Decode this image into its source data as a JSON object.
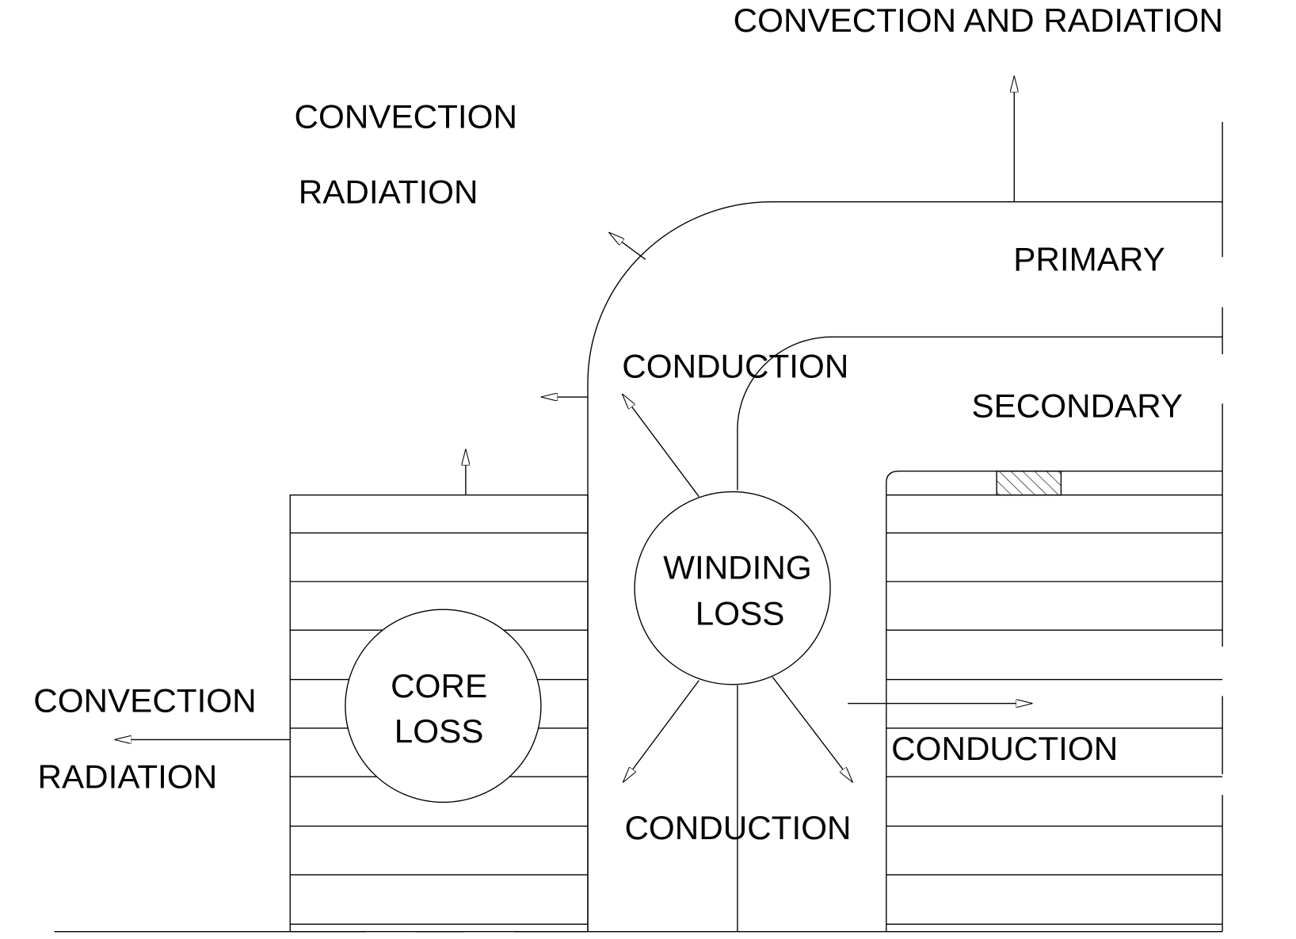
{
  "labels": [
    "CONVECTION AND RADIATION",
    "CONVECTION",
    "RADIATION",
    "PRIMARY",
    "CONDUCTION",
    "SECONDARY",
    "WINDING",
    "LOSS",
    "CORE",
    "LOSS",
    "CONVECTION",
    "RADIATION",
    "CONDUCTION",
    "CONDUCTION"
  ]
}
